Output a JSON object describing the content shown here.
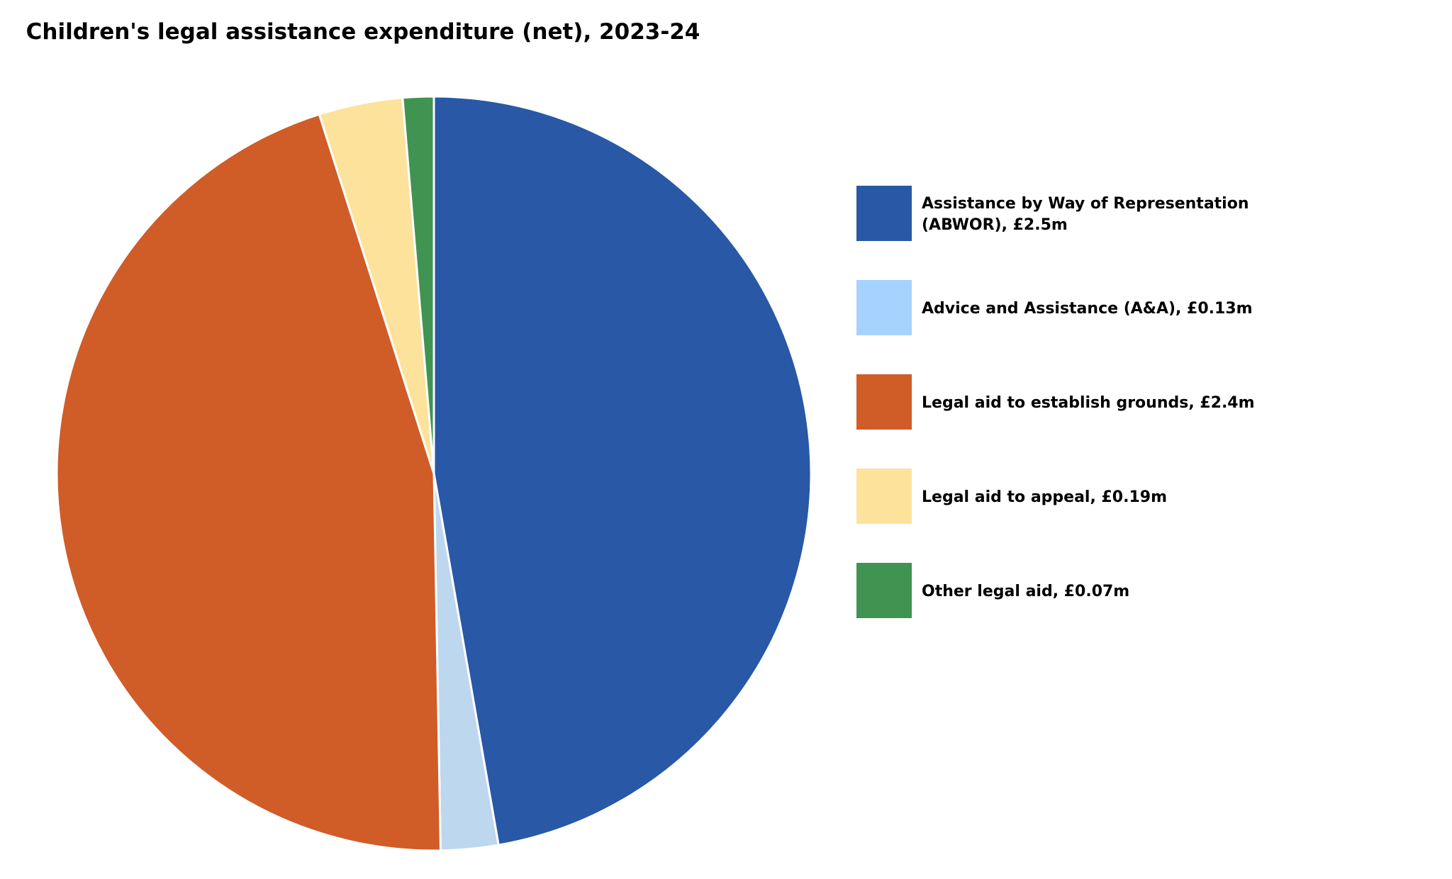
{
  "chart_data": {
    "type": "pie",
    "title": "Children's legal assistance expenditure (net), 2023-24",
    "start_angle_deg": 0,
    "direction": "clockwise",
    "slices": [
      {
        "label_lines": [
          "Assistance by Way of Representation",
          "(ABWOR), £2.5m"
        ],
        "value": 2.5,
        "unit": "£m",
        "slice_color": "#2858A6",
        "legend_color": "#2858A6"
      },
      {
        "label_lines": [
          "Advice and Assistance (A&A), £0.13m"
        ],
        "value": 0.13,
        "unit": "£m",
        "slice_color": "#BDD7EE",
        "legend_color": "#A6D2FF"
      },
      {
        "label_lines": [
          "Legal aid to establish grounds, £2.4m"
        ],
        "value": 2.4,
        "unit": "£m",
        "slice_color": "#D05C28",
        "legend_color": "#D05C28"
      },
      {
        "label_lines": [
          "Legal aid to appeal, £0.19m"
        ],
        "value": 0.19,
        "unit": "£m",
        "slice_color": "#FDE29B",
        "legend_color": "#FDE29B"
      },
      {
        "label_lines": [
          "Other legal aid, £0.07m"
        ],
        "value": 0.07,
        "unit": "£m",
        "slice_color": "#419352",
        "legend_color": "#419352"
      }
    ],
    "legend_position": "right"
  }
}
